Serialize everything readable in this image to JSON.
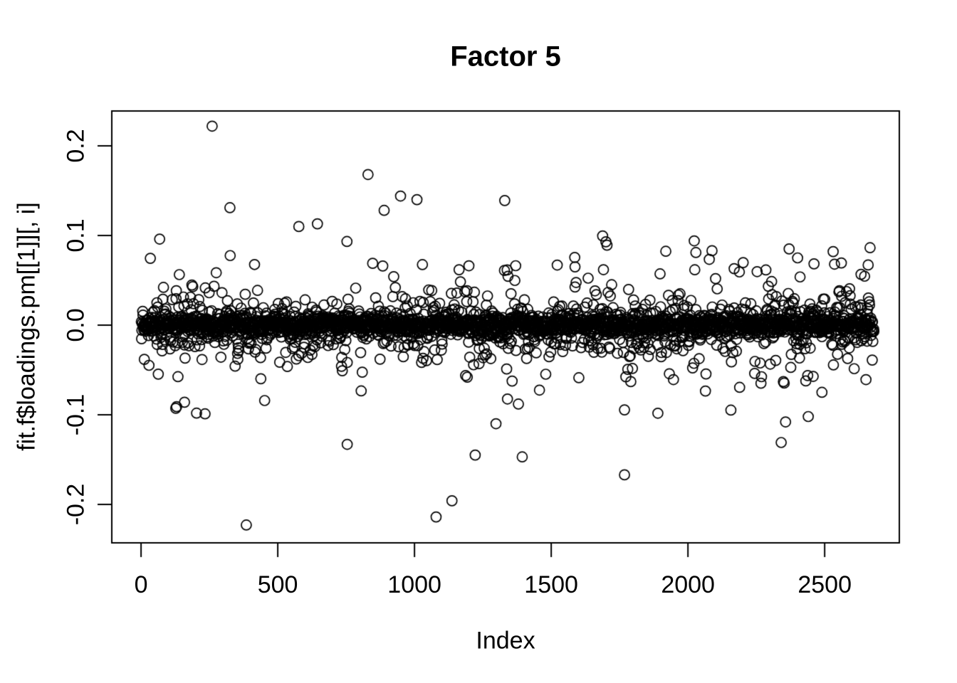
{
  "figure": {
    "background_color": "#ffffff",
    "foreground_color": "#000000"
  },
  "chart_data": {
    "type": "scatter",
    "title": "Factor 5",
    "xlabel": "Index",
    "ylabel": "fit.f$loadings.pm[[1]][, i]",
    "x_ticks": [
      0,
      500,
      1000,
      1500,
      2000,
      2500
    ],
    "x_tick_labels": [
      "0",
      "500",
      "1000",
      "1500",
      "2000",
      "2500"
    ],
    "y_ticks": [
      0.2,
      0.1,
      0.0,
      -0.1,
      -0.2
    ],
    "y_tick_labels": [
      "0.2",
      "0.1",
      "0.0",
      "-0.1",
      "-0.2"
    ],
    "xlim": [
      -107,
      2773
    ],
    "ylim": [
      -0.2429,
      0.2389
    ],
    "grid": false,
    "legend": null,
    "n_points": 2680,
    "marker": {
      "shape": "open-circle",
      "radius_px": 7,
      "stroke_px": 1.7,
      "color": "#000000"
    },
    "bulk_distribution": {
      "seed": 1337,
      "mixture": [
        {
          "weight": 0.6,
          "sd": 0.0055
        },
        {
          "weight": 0.25,
          "sd": 0.016
        },
        {
          "weight": 0.11,
          "sd": 0.032
        },
        {
          "weight": 0.04,
          "sd": 0.055
        }
      ],
      "clip_abs": 0.102
    },
    "outliers": [
      [
        260,
        0.222
      ],
      [
        325,
        0.131
      ],
      [
        68,
        0.096
      ],
      [
        577,
        0.11
      ],
      [
        645,
        0.113
      ],
      [
        830,
        0.168
      ],
      [
        889,
        0.128
      ],
      [
        949,
        0.144
      ],
      [
        1009,
        0.14
      ],
      [
        1330,
        0.139
      ],
      [
        1329,
        0.061
      ],
      [
        1522,
        0.067
      ],
      [
        1587,
        0.065
      ],
      [
        2023,
        0.094
      ],
      [
        2029,
        0.081
      ],
      [
        2088,
        0.083
      ],
      [
        2169,
        0.063
      ],
      [
        2370,
        0.085
      ],
      [
        2401,
        0.075
      ],
      [
        2531,
        0.082
      ],
      [
        2536,
        0.068
      ],
      [
        385,
        -0.223
      ],
      [
        1079,
        -0.214
      ],
      [
        1137,
        -0.196
      ],
      [
        1222,
        -0.145
      ],
      [
        1394,
        -0.147
      ],
      [
        1768,
        -0.167
      ],
      [
        754,
        -0.133
      ],
      [
        2341,
        -0.131
      ],
      [
        1298,
        -0.11
      ],
      [
        234,
        -0.099
      ],
      [
        130,
        -0.091
      ],
      [
        2357,
        -0.108
      ],
      [
        2440,
        -0.102
      ],
      [
        159,
        -0.086
      ],
      [
        2490,
        -0.075
      ]
    ]
  }
}
